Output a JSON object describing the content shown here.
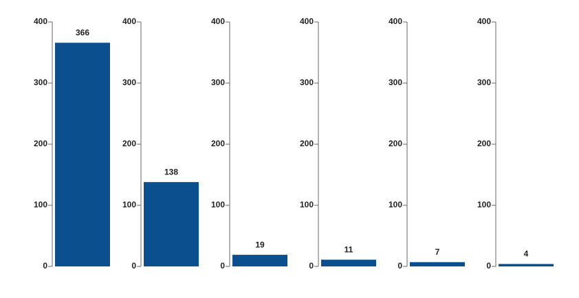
{
  "chart_data": [
    {
      "type": "bar",
      "categories": [
        null
      ],
      "values": [
        366
      ],
      "color": "#0b4f8e",
      "ylim": [
        0,
        400
      ],
      "yticks": [
        0,
        100,
        200,
        300,
        400
      ]
    },
    {
      "type": "bar",
      "categories": [
        null
      ],
      "values": [
        138
      ],
      "color": "#0b4f8e",
      "ylim": [
        0,
        400
      ],
      "yticks": [
        0,
        100,
        200,
        300,
        400
      ]
    },
    {
      "type": "bar",
      "categories": [
        null
      ],
      "values": [
        19
      ],
      "color": "#0b4f8e",
      "ylim": [
        0,
        400
      ],
      "yticks": [
        0,
        100,
        200,
        300,
        400
      ]
    },
    {
      "type": "bar",
      "categories": [
        null
      ],
      "values": [
        11
      ],
      "color": "#0b4f8e",
      "ylim": [
        0,
        400
      ],
      "yticks": [
        0,
        100,
        200,
        300,
        400
      ]
    },
    {
      "type": "bar",
      "categories": [
        null
      ],
      "values": [
        7
      ],
      "color": "#0b4f8e",
      "ylim": [
        0,
        400
      ],
      "yticks": [
        0,
        100,
        200,
        300,
        400
      ]
    },
    {
      "type": "bar",
      "categories": [
        null
      ],
      "values": [
        4
      ],
      "color": "#0b4f8e",
      "ylim": [
        0,
        400
      ],
      "yticks": [
        0,
        100,
        200,
        300,
        400
      ]
    }
  ]
}
